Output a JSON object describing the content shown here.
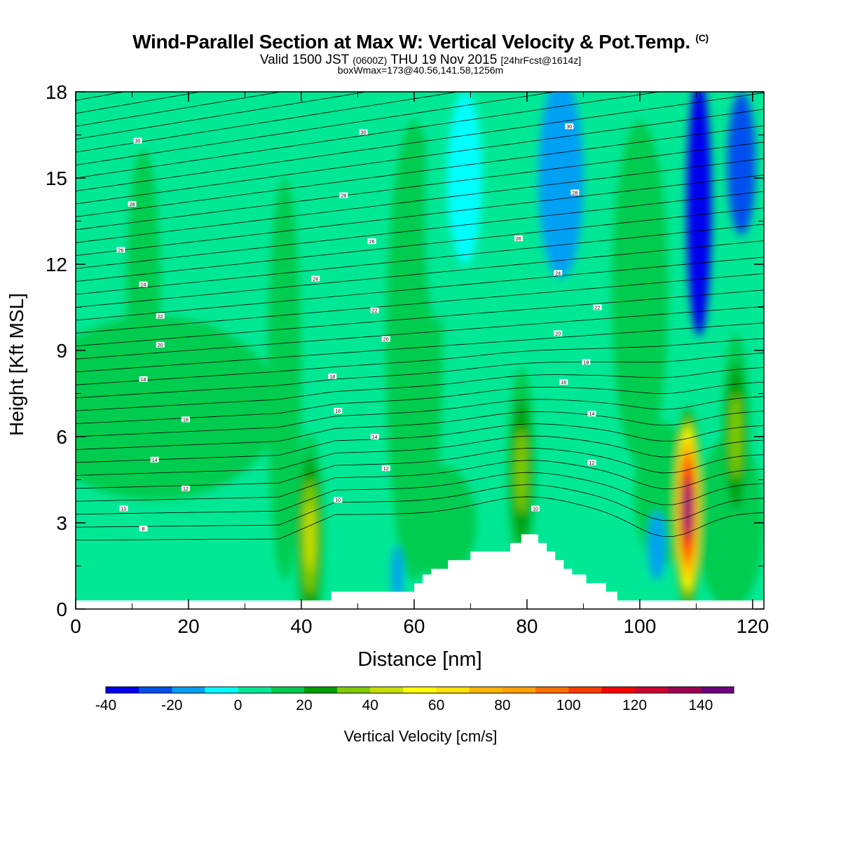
{
  "header": {
    "title": "Wind-Parallel Section at Max W: Vertical Velocity & Pot.Temp.",
    "copyright": "(C)",
    "valid_prefix": "Valid 1500 JST",
    "valid_z": "(0600Z)",
    "valid_date": "THU 19 Nov 2015",
    "valid_fcst": "[24hrFcst@1614z]",
    "box_info": "boxWmax=173@40.56,141.58,1256m"
  },
  "chart_data": {
    "type": "heatmap",
    "xlabel": "Distance [nm]",
    "ylabel": "Height [Kft MSL]",
    "xlim": [
      0,
      122
    ],
    "ylim": [
      0,
      18
    ],
    "x_ticks": [
      "0",
      "20",
      "40",
      "60",
      "80",
      "100",
      "120"
    ],
    "y_ticks": [
      "0",
      "3",
      "6",
      "9",
      "12",
      "15",
      "18"
    ],
    "colorbar": {
      "label": "Vertical Velocity [cm/s]",
      "levels": [
        -40,
        -30,
        -20,
        -10,
        0,
        10,
        20,
        30,
        40,
        50,
        60,
        70,
        80,
        90,
        100,
        110,
        120,
        130,
        140,
        150
      ],
      "tick_labels": [
        "-40",
        "-20",
        "0",
        "20",
        "40",
        "60",
        "80",
        "100",
        "120",
        "140"
      ],
      "colors": [
        "#0000ee",
        "#0050ee",
        "#00a0f4",
        "#00ffff",
        "#00e896",
        "#00cc50",
        "#00a000",
        "#80cc00",
        "#c8e000",
        "#ffff00",
        "#ffe000",
        "#ffb400",
        "#ffa000",
        "#ff7000",
        "#ff3c00",
        "#ff0000",
        "#cc0030",
        "#a00050",
        "#700080"
      ]
    },
    "updraft_cores": [
      {
        "name": "updraft-x42",
        "x": 41.5,
        "y": 2.5,
        "max": 40
      },
      {
        "name": "updraft-x79",
        "x": 79,
        "y": 4.8,
        "max": 30
      },
      {
        "name": "updraft-x109",
        "x": 108.5,
        "y": 3.5,
        "max": 150
      },
      {
        "name": "updraft-x117",
        "x": 117,
        "y": 6,
        "max": 30
      }
    ],
    "isentrope_labels": [
      {
        "x": 11,
        "y": 16.3,
        "t": "30"
      },
      {
        "x": 51,
        "y": 16.6,
        "t": "30"
      },
      {
        "x": 87.5,
        "y": 16.8,
        "t": "30"
      },
      {
        "x": 10,
        "y": 14.1,
        "t": "28"
      },
      {
        "x": 47.5,
        "y": 14.4,
        "t": "28"
      },
      {
        "x": 88.5,
        "y": 14.5,
        "t": "28"
      },
      {
        "x": 8,
        "y": 12.5,
        "t": "26"
      },
      {
        "x": 52.5,
        "y": 12.8,
        "t": "26"
      },
      {
        "x": 78.5,
        "y": 12.9,
        "t": "26"
      },
      {
        "x": 12,
        "y": 11.3,
        "t": "24"
      },
      {
        "x": 42.5,
        "y": 11.5,
        "t": "24"
      },
      {
        "x": 85.5,
        "y": 11.7,
        "t": "24"
      },
      {
        "x": 15,
        "y": 10.2,
        "t": "22"
      },
      {
        "x": 53,
        "y": 10.4,
        "t": "22"
      },
      {
        "x": 92.5,
        "y": 10.5,
        "t": "22"
      },
      {
        "x": 15,
        "y": 9.2,
        "t": "20"
      },
      {
        "x": 55,
        "y": 9.4,
        "t": "20"
      },
      {
        "x": 85.5,
        "y": 9.6,
        "t": "20"
      },
      {
        "x": 12,
        "y": 8,
        "t": "18"
      },
      {
        "x": 45.5,
        "y": 8.1,
        "t": "18"
      },
      {
        "x": 90.5,
        "y": 8.6,
        "t": "18"
      },
      {
        "x": 19.5,
        "y": 6.6,
        "t": "16"
      },
      {
        "x": 46.5,
        "y": 6.9,
        "t": "16"
      },
      {
        "x": 86.5,
        "y": 7.9,
        "t": "16"
      },
      {
        "x": 14,
        "y": 5.2,
        "t": "14"
      },
      {
        "x": 53,
        "y": 6,
        "t": "14"
      },
      {
        "x": 91.5,
        "y": 6.8,
        "t": "14"
      },
      {
        "x": 19.5,
        "y": 4.2,
        "t": "12"
      },
      {
        "x": 55,
        "y": 4.9,
        "t": "12"
      },
      {
        "x": 91.5,
        "y": 5.1,
        "t": "12"
      },
      {
        "x": 8.5,
        "y": 3.5,
        "t": "10"
      },
      {
        "x": 46.5,
        "y": 3.8,
        "t": "10"
      },
      {
        "x": 81.5,
        "y": 3.5,
        "t": "10"
      },
      {
        "x": 12,
        "y": 2.8,
        "t": "8"
      }
    ],
    "terrain": [
      [
        0,
        0.3
      ],
      [
        45.3,
        0.3
      ],
      [
        45.3,
        0.6
      ],
      [
        60,
        0.6
      ],
      [
        60,
        0.9
      ],
      [
        61.5,
        0.9
      ],
      [
        61.5,
        1.2
      ],
      [
        63,
        1.2
      ],
      [
        63,
        1.4
      ],
      [
        66,
        1.4
      ],
      [
        66,
        1.7
      ],
      [
        70,
        1.7
      ],
      [
        70,
        2
      ],
      [
        77,
        2
      ],
      [
        77,
        2.3
      ],
      [
        79,
        2.3
      ],
      [
        79,
        2.6
      ],
      [
        82,
        2.6
      ],
      [
        82,
        2.3
      ],
      [
        83.5,
        2.3
      ],
      [
        83.5,
        2
      ],
      [
        85,
        2
      ],
      [
        85,
        1.7
      ],
      [
        86.5,
        1.7
      ],
      [
        86.5,
        1.4
      ],
      [
        88,
        1.4
      ],
      [
        88,
        1.2
      ],
      [
        90.5,
        1.2
      ],
      [
        90.5,
        0.9
      ],
      [
        94,
        0.9
      ],
      [
        94,
        0.6
      ],
      [
        96,
        0.6
      ],
      [
        96,
        0.3
      ],
      [
        122,
        0.3
      ]
    ]
  }
}
